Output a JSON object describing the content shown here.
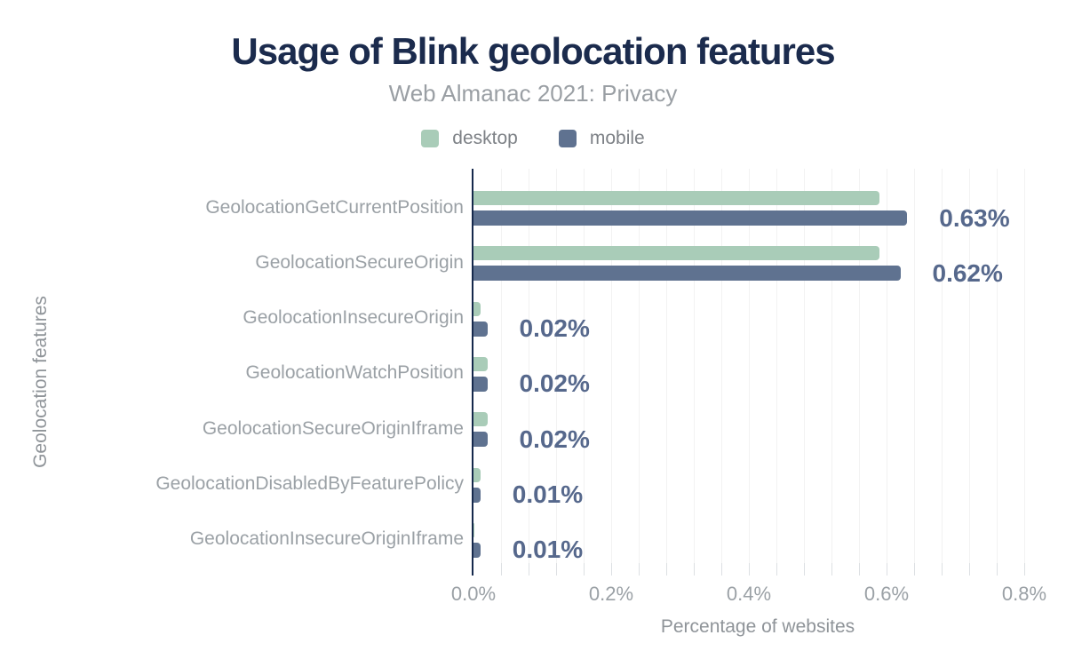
{
  "header": {
    "title": "Usage of Blink geolocation features",
    "subtitle": "Web Almanac 2021: Privacy"
  },
  "legend": {
    "items": [
      {
        "label": "desktop",
        "color": "#a9ccb8"
      },
      {
        "label": "mobile",
        "color": "#5f7290"
      }
    ]
  },
  "colors": {
    "title": "#1b2b4d",
    "axis_line": "#16294c",
    "desktop_bar": "#a9ccb8",
    "mobile_bar": "#5f7290",
    "value_label": "#56688c",
    "gridline": "#f2f2f2",
    "muted_text": "#9ba1a6"
  },
  "chart_data": {
    "type": "bar",
    "orientation": "horizontal",
    "title": "Usage of Blink geolocation features",
    "subtitle": "Web Almanac 2021: Privacy",
    "categories": [
      "GeolocationGetCurrentPosition",
      "GeolocationSecureOrigin",
      "GeolocationInsecureOrigin",
      "GeolocationWatchPosition",
      "GeolocationSecureOriginIframe",
      "GeolocationDisabledByFeaturePolicy",
      "GeolocationInsecureOriginIframe"
    ],
    "series": [
      {
        "name": "desktop",
        "color": "#a9ccb8",
        "values": [
          0.59,
          0.59,
          0.01,
          0.02,
          0.02,
          0.01,
          0.0
        ]
      },
      {
        "name": "mobile",
        "color": "#5f7290",
        "values": [
          0.63,
          0.62,
          0.02,
          0.02,
          0.02,
          0.01,
          0.01
        ]
      }
    ],
    "value_labels": [
      "0.63%",
      "0.62%",
      "0.02%",
      "0.02%",
      "0.02%",
      "0.01%",
      "0.01%"
    ],
    "xlabel": "Percentage of websites",
    "ylabel": "Geolocation features",
    "x_ticks": [
      "0.0%",
      "0.2%",
      "0.4%",
      "0.6%",
      "0.8%"
    ],
    "xlim": [
      0,
      0.8
    ],
    "grid": "vertical-minor, 0.04% spacing",
    "legend_position": "top-center"
  }
}
